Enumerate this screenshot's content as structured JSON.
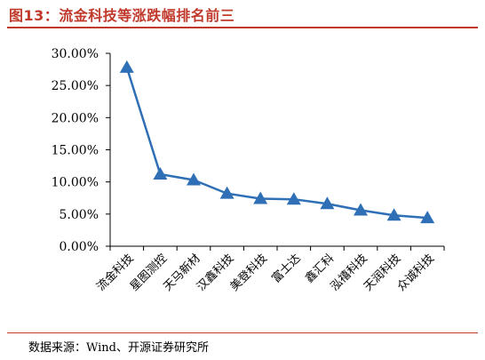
{
  "title": "图13：流金科技等涨跌幅排名前三",
  "source": "数据来源：Wind、开源证券研究所",
  "colors": {
    "title": "#c0392b",
    "series": "#2e6fb6",
    "axis": "#000000"
  },
  "chart_data": {
    "type": "line",
    "categories": [
      "流金科技",
      "星图测控",
      "天马新材",
      "汉鑫科技",
      "美登科技",
      "富士达",
      "鑫汇科",
      "泓禧科技",
      "天润科技",
      "众诚科技"
    ],
    "values": [
      27.8,
      11.2,
      10.3,
      8.2,
      7.4,
      7.3,
      6.6,
      5.6,
      4.8,
      4.4
    ],
    "ylim": [
      0,
      30
    ],
    "yticks": [
      "0.00%",
      "5.00%",
      "10.00%",
      "15.00%",
      "20.00%",
      "25.00%",
      "30.00%"
    ],
    "marker": "triangle",
    "grid": false,
    "legend": "none"
  }
}
